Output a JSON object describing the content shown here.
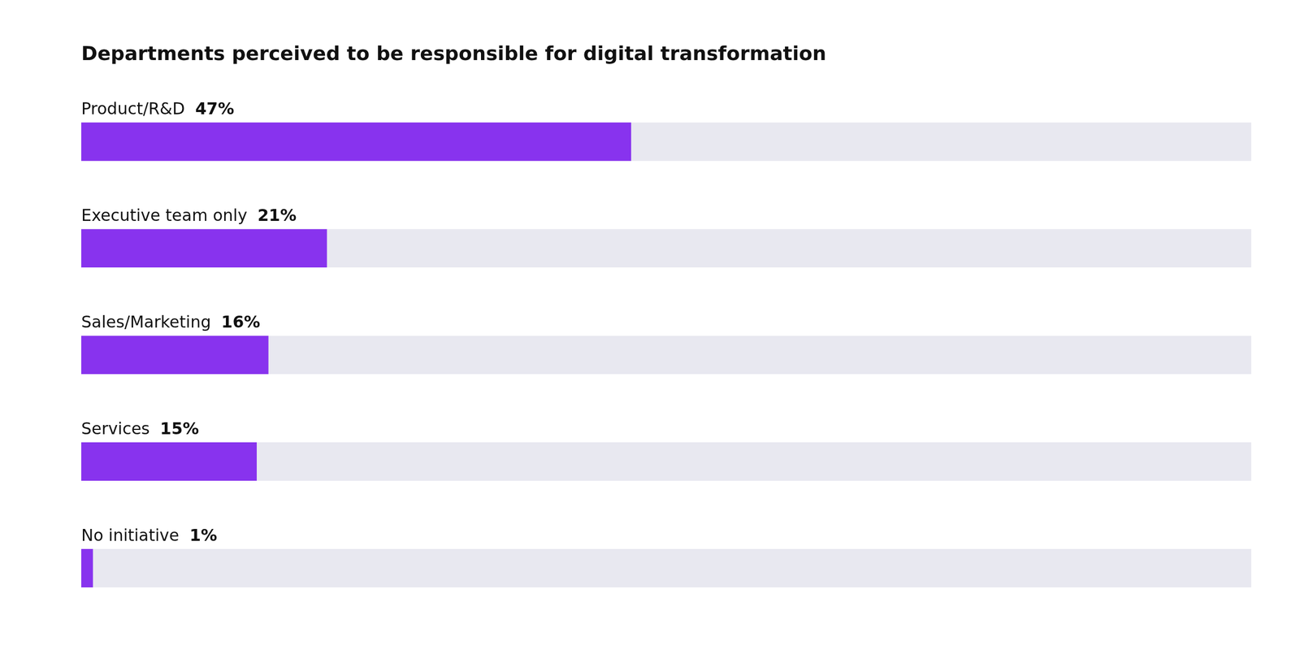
{
  "chart_data": {
    "type": "bar",
    "orientation": "horizontal",
    "title": "Departments perceived to be responsible for digital transformation",
    "categories": [
      "Product/R&D",
      "Executive team only",
      "Sales/Marketing",
      "Services",
      "No initiative"
    ],
    "values": [
      47,
      21,
      16,
      15,
      1
    ],
    "value_labels": [
      "47%",
      "21%",
      "16%",
      "15%",
      "1%"
    ],
    "data_labels": true,
    "color": "#8833ee",
    "xlim": [
      0,
      100
    ],
    "grid": false,
    "tick_labels": false
  }
}
